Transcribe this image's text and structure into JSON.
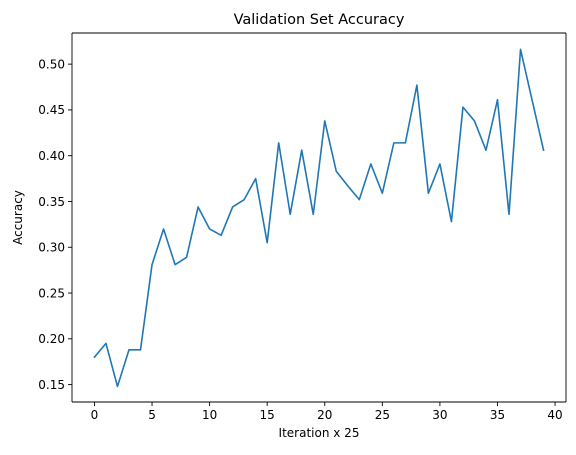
{
  "chart_data": {
    "type": "line",
    "title": "Validation Set Accuracy",
    "xlabel": "Iteration x 25",
    "ylabel": "Accuracy",
    "xlim": [
      -1.95,
      40.95
    ],
    "ylim": [
      0.131,
      0.534
    ],
    "xticks": [
      0,
      5,
      10,
      15,
      20,
      25,
      30,
      35,
      40
    ],
    "yticks": [
      0.15,
      0.2,
      0.25,
      0.3,
      0.35,
      0.4,
      0.45,
      0.5
    ],
    "ytick_labels": [
      "0.15",
      "0.20",
      "0.25",
      "0.30",
      "0.35",
      "0.40",
      "0.45",
      "0.50"
    ],
    "grid": false,
    "series": [
      {
        "name": "validation accuracy",
        "color": "#1f77b4",
        "x": [
          0,
          1,
          2,
          3,
          4,
          5,
          6,
          7,
          8,
          9,
          10,
          11,
          12,
          13,
          14,
          15,
          16,
          17,
          18,
          19,
          20,
          21,
          22,
          23,
          24,
          25,
          26,
          27,
          28,
          29,
          30,
          31,
          32,
          33,
          34,
          35,
          36,
          37,
          38,
          39
        ],
        "values": [
          0.18,
          0.195,
          0.148,
          0.188,
          0.188,
          0.281,
          0.32,
          0.281,
          0.289,
          0.344,
          0.32,
          0.313,
          0.344,
          0.352,
          0.375,
          0.305,
          0.414,
          0.336,
          0.406,
          0.336,
          0.438,
          0.383,
          0.367,
          0.352,
          0.391,
          0.359,
          0.414,
          0.414,
          0.477,
          0.359,
          0.391,
          0.328,
          0.453,
          0.438,
          0.406,
          0.461,
          0.336,
          0.516,
          0.461,
          0.406
        ]
      }
    ]
  }
}
